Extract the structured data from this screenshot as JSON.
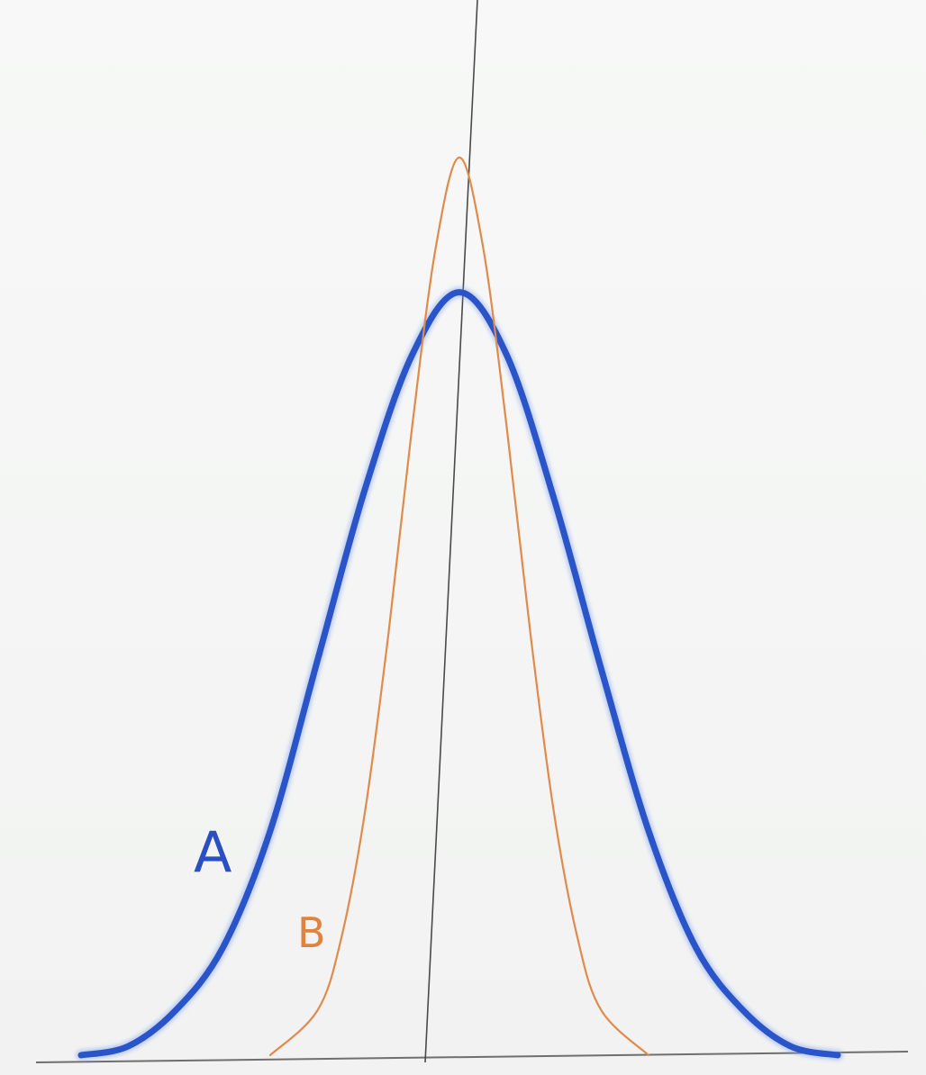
{
  "chart_data": {
    "type": "line",
    "title": "",
    "xlabel": "",
    "ylabel": "",
    "grid": false,
    "legend": "none",
    "xlim": [
      -4,
      4
    ],
    "ylim": [
      0,
      1
    ],
    "series": [
      {
        "name": "A",
        "color": "#2a55c9",
        "x": [
          -4.0,
          -3.5,
          -3.0,
          -2.5,
          -2.0,
          -1.5,
          -1.0,
          -0.5,
          0.0,
          0.5,
          1.0,
          1.5,
          2.0,
          2.5,
          3.0,
          3.5,
          4.0
        ],
        "y": [
          0.0,
          0.01,
          0.05,
          0.12,
          0.25,
          0.44,
          0.63,
          0.78,
          0.85,
          0.78,
          0.62,
          0.43,
          0.25,
          0.12,
          0.05,
          0.01,
          0.0
        ]
      },
      {
        "name": "B",
        "color": "#e08a4c",
        "x": [
          -2.0,
          -1.5,
          -1.25,
          -1.0,
          -0.75,
          -0.5,
          -0.25,
          0.0,
          0.25,
          0.5,
          0.75,
          1.0,
          1.25,
          1.5,
          2.0
        ],
        "y": [
          0.0,
          0.05,
          0.13,
          0.27,
          0.47,
          0.7,
          0.9,
          1.0,
          0.9,
          0.7,
          0.47,
          0.27,
          0.13,
          0.05,
          0.0
        ]
      }
    ],
    "annotations": [
      {
        "text": "A",
        "series": "A"
      },
      {
        "text": "B",
        "series": "B"
      }
    ]
  }
}
